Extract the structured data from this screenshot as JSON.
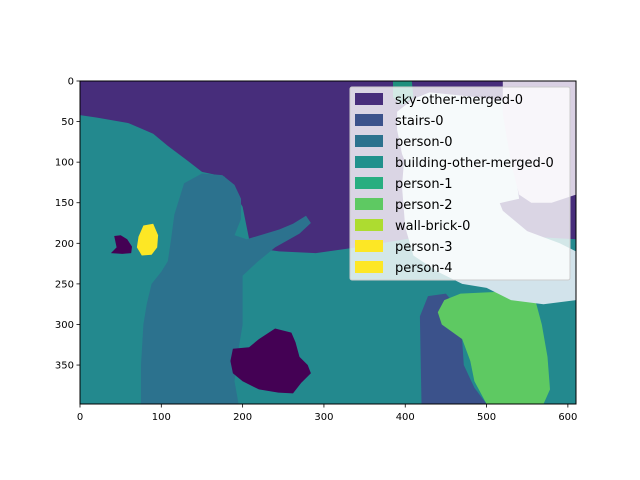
{
  "chart_data": {
    "type": "heatmap",
    "title": "",
    "xlabel": "",
    "ylabel": "",
    "xlim": [
      0,
      610
    ],
    "ylim": [
      398,
      0
    ],
    "y_inverted": true,
    "grid": false,
    "xticks": [
      0,
      100,
      200,
      300,
      400,
      500,
      600
    ],
    "yticks": [
      0,
      50,
      100,
      150,
      200,
      250,
      300,
      350
    ],
    "colormap": "viridis",
    "background_color": "#23898e",
    "legend_position": "upper right",
    "legend": [
      {
        "label": "sky-other-merged-0",
        "color": "#472d7b"
      },
      {
        "label": "stairs-0",
        "color": "#3b528b"
      },
      {
        "label": "person-0",
        "color": "#2c728e"
      },
      {
        "label": "building-other-merged-0",
        "color": "#21918c"
      },
      {
        "label": "person-1",
        "color": "#28ae80"
      },
      {
        "label": "person-2",
        "color": "#5ec962"
      },
      {
        "label": "wall-brick-0",
        "color": "#addc30"
      },
      {
        "label": "person-3",
        "color": "#fde725"
      },
      {
        "label": "person-4",
        "color": "#fde725"
      }
    ],
    "regions": [
      {
        "name": "sky-region",
        "color": "#472d7b",
        "points": [
          [
            0,
            0
          ],
          [
            610,
            0
          ],
          [
            610,
            195
          ],
          [
            520,
            190
          ],
          [
            470,
            175
          ],
          [
            430,
            190
          ],
          [
            340,
            205
          ],
          [
            290,
            212
          ],
          [
            245,
            210
          ],
          [
            210,
            205
          ],
          [
            200,
            155
          ],
          [
            178,
            118
          ],
          [
            150,
            112
          ],
          [
            132,
            98
          ],
          [
            108,
            80
          ],
          [
            90,
            65
          ],
          [
            60,
            52
          ],
          [
            20,
            45
          ],
          [
            0,
            42
          ]
        ]
      },
      {
        "name": "person-0-region",
        "color": "#2c728e",
        "points": [
          [
            128,
            126
          ],
          [
            150,
            114
          ],
          [
            175,
            116
          ],
          [
            190,
            128
          ],
          [
            198,
            145
          ],
          [
            198,
            170
          ],
          [
            190,
            190
          ],
          [
            205,
            195
          ],
          [
            245,
            183
          ],
          [
            262,
            176
          ],
          [
            278,
            166
          ],
          [
            284,
            175
          ],
          [
            270,
            188
          ],
          [
            240,
            205
          ],
          [
            218,
            223
          ],
          [
            200,
            240
          ],
          [
            200,
            300
          ],
          [
            195,
            330
          ],
          [
            190,
            370
          ],
          [
            195,
            398
          ],
          [
            75,
            398
          ],
          [
            75,
            350
          ],
          [
            78,
            300
          ],
          [
            82,
            275
          ],
          [
            88,
            250
          ],
          [
            100,
            235
          ],
          [
            108,
            222
          ],
          [
            112,
            195
          ],
          [
            116,
            165
          ]
        ]
      },
      {
        "name": "stairs-region",
        "color": "#3b528b",
        "points": [
          [
            418,
            290
          ],
          [
            428,
            265
          ],
          [
            450,
            262
          ],
          [
            465,
            280
          ],
          [
            470,
            320
          ],
          [
            472,
            350
          ],
          [
            485,
            378
          ],
          [
            500,
            398
          ],
          [
            420,
            398
          ]
        ]
      },
      {
        "name": "person-2-region",
        "color": "#5ec962",
        "points": [
          [
            448,
            270
          ],
          [
            468,
            262
          ],
          [
            510,
            260
          ],
          [
            540,
            242
          ],
          [
            555,
            245
          ],
          [
            560,
            270
          ],
          [
            568,
            300
          ],
          [
            575,
            340
          ],
          [
            578,
            380
          ],
          [
            570,
            398
          ],
          [
            500,
            398
          ],
          [
            485,
            370
          ],
          [
            480,
            345
          ],
          [
            470,
            318
          ],
          [
            445,
            300
          ],
          [
            440,
            285
          ]
        ]
      },
      {
        "name": "person-3-region",
        "color": "#fde725",
        "points": [
          [
            72,
            192
          ],
          [
            78,
            178
          ],
          [
            90,
            176
          ],
          [
            96,
            190
          ],
          [
            95,
            205
          ],
          [
            88,
            214
          ],
          [
            76,
            215
          ],
          [
            70,
            205
          ]
        ]
      },
      {
        "name": "left-blob",
        "color": "#440154",
        "points": [
          [
            42,
            191
          ],
          [
            50,
            190
          ],
          [
            58,
            195
          ],
          [
            64,
            204
          ],
          [
            63,
            212
          ],
          [
            52,
            213
          ],
          [
            38,
            212
          ],
          [
            45,
            205
          ]
        ]
      },
      {
        "name": "center-blob",
        "color": "#440154",
        "points": [
          [
            188,
            330
          ],
          [
            208,
            328
          ],
          [
            220,
            318
          ],
          [
            240,
            305
          ],
          [
            260,
            310
          ],
          [
            265,
            322
          ],
          [
            270,
            340
          ],
          [
            280,
            350
          ],
          [
            284,
            360
          ],
          [
            272,
            372
          ],
          [
            262,
            385
          ],
          [
            244,
            384
          ],
          [
            220,
            380
          ],
          [
            200,
            370
          ],
          [
            188,
            360
          ],
          [
            185,
            345
          ]
        ]
      },
      {
        "name": "top-right-light-region",
        "color": "#d2e3eb",
        "points": [
          [
            390,
            38
          ],
          [
            410,
            22
          ],
          [
            430,
            14
          ],
          [
            470,
            18
          ],
          [
            490,
            20
          ],
          [
            520,
            24
          ],
          [
            530,
            60
          ],
          [
            535,
            110
          ],
          [
            540,
            145
          ],
          [
            510,
            152
          ],
          [
            490,
            140
          ],
          [
            470,
            150
          ],
          [
            450,
            148
          ],
          [
            430,
            140
          ],
          [
            410,
            125
          ],
          [
            396,
            90
          ],
          [
            390,
            60
          ]
        ]
      },
      {
        "name": "top-right-lavender-region",
        "color": "#d9d0e3",
        "points": [
          [
            520,
            0
          ],
          [
            610,
            0
          ],
          [
            610,
            140
          ],
          [
            580,
            150
          ],
          [
            555,
            150
          ],
          [
            540,
            140
          ],
          [
            530,
            100
          ],
          [
            520,
            40
          ]
        ]
      },
      {
        "name": "person-1-pale-region",
        "color": "#e8efcf",
        "points": [
          [
            458,
            122
          ],
          [
            470,
            102
          ],
          [
            486,
            108
          ],
          [
            492,
            130
          ],
          [
            486,
            150
          ],
          [
            474,
            172
          ],
          [
            462,
            178
          ],
          [
            456,
            160
          ]
        ]
      },
      {
        "name": "right-mid-pale-region",
        "color": "#d2e3eb",
        "points": [
          [
            400,
            80
          ],
          [
            430,
            70
          ],
          [
            460,
            65
          ],
          [
            485,
            85
          ],
          [
            500,
            110
          ],
          [
            520,
            160
          ],
          [
            550,
            185
          ],
          [
            590,
            200
          ],
          [
            610,
            210
          ],
          [
            610,
            270
          ],
          [
            570,
            275
          ],
          [
            530,
            270
          ],
          [
            500,
            255
          ],
          [
            470,
            250
          ],
          [
            440,
            235
          ],
          [
            410,
            215
          ],
          [
            400,
            180
          ],
          [
            396,
            130
          ]
        ]
      },
      {
        "name": "teal-top-strip",
        "color": "#1f8f7d",
        "points": [
          [
            385,
            0
          ],
          [
            408,
            0
          ],
          [
            410,
            20
          ],
          [
            396,
            30
          ],
          [
            385,
            20
          ]
        ]
      }
    ]
  }
}
